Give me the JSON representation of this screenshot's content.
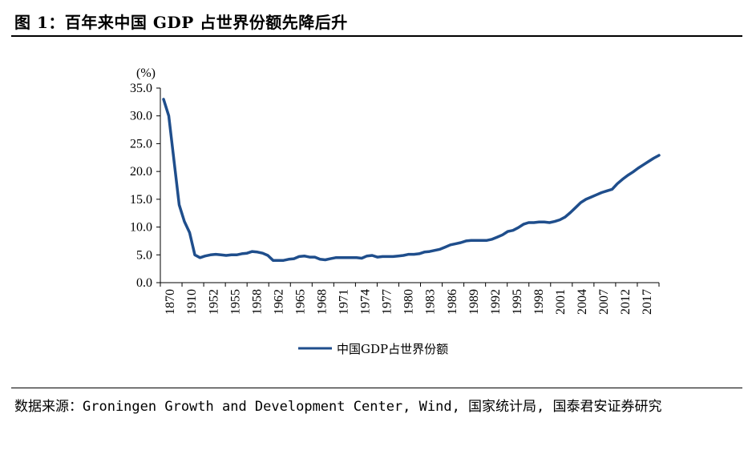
{
  "title": "图 1：百年来中国 GDP 占世界份额先降后升",
  "source": "数据来源：Groningen Growth and Development Center, Wind, 国家统计局, 国泰君安证券研究",
  "colors": {
    "line": "#1f4e8c",
    "axis": "#000000"
  },
  "chart_data": {
    "type": "line",
    "ylabel": "(%)",
    "ylim": [
      0,
      35
    ],
    "yticks": [
      "0.0",
      "5.0",
      "10.0",
      "15.0",
      "20.0",
      "25.0",
      "30.0",
      "35.0"
    ],
    "xtick_labels": [
      "1870",
      "1910",
      "1952",
      "1955",
      "1958",
      "1962",
      "1965",
      "1968",
      "1971",
      "1974",
      "1977",
      "1980",
      "1983",
      "1986",
      "1989",
      "1992",
      "1995",
      "1998",
      "2001",
      "2004",
      "2007",
      "2012",
      "2017"
    ],
    "grid": false,
    "legend_position": "bottom",
    "series": [
      {
        "name": "中国GDP占世界份额",
        "values": [
          33.0,
          30.0,
          22.0,
          14.0,
          11.0,
          9.0,
          5.0,
          4.5,
          4.8,
          5.0,
          5.1,
          5.0,
          4.9,
          5.0,
          5.0,
          5.2,
          5.3,
          5.6,
          5.5,
          5.3,
          4.9,
          4.0,
          4.0,
          4.0,
          4.2,
          4.3,
          4.7,
          4.8,
          4.6,
          4.6,
          4.2,
          4.1,
          4.3,
          4.5,
          4.5,
          4.5,
          4.5,
          4.5,
          4.4,
          4.8,
          4.9,
          4.6,
          4.7,
          4.7,
          4.7,
          4.8,
          4.9,
          5.1,
          5.1,
          5.2,
          5.5,
          5.6,
          5.8,
          6.0,
          6.4,
          6.8,
          7.0,
          7.2,
          7.5,
          7.6,
          7.6,
          7.6,
          7.6,
          7.8,
          8.2,
          8.6,
          9.2,
          9.4,
          9.9,
          10.5,
          10.8,
          10.8,
          10.9,
          10.9,
          10.8,
          11.0,
          11.3,
          11.8,
          12.6,
          13.5,
          14.4,
          15.0,
          15.4,
          15.8,
          16.2,
          16.5,
          16.8,
          17.8,
          18.6,
          19.3,
          19.9,
          20.6,
          21.2,
          21.8,
          22.4,
          22.9
        ]
      }
    ]
  }
}
